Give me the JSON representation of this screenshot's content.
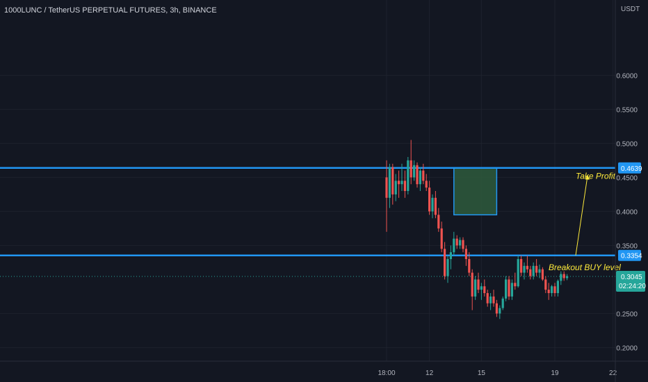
{
  "header": {
    "title": "1000LUNC / TetherUS PERPETUAL FUTURES, 3h, BINANCE",
    "currency": "USDT"
  },
  "colors": {
    "background": "#131722",
    "grid": "#1e222d",
    "up": "#26a69a",
    "down": "#ef5350",
    "level_line": "#2196f3",
    "annotation": "#ffeb3b",
    "target_box": "#2e5a3c"
  },
  "chart_data": {
    "type": "candlestick",
    "symbol": "1000LUNC / TetherUS PERPETUAL FUTURES",
    "interval": "3h",
    "exchange": "BINANCE",
    "y_range": [
      0.18,
      0.68
    ],
    "y_ticks": [
      {
        "value": 0.6,
        "label": "0.6000"
      },
      {
        "value": 0.55,
        "label": "0.5500"
      },
      {
        "value": 0.5,
        "label": "0.5000"
      },
      {
        "value": 0.45,
        "label": "0.4500"
      },
      {
        "value": 0.4,
        "label": "0.4000"
      },
      {
        "value": 0.35,
        "label": "0.3500"
      },
      {
        "value": 0.25,
        "label": "0.2500"
      },
      {
        "value": 0.2,
        "label": "0.2000"
      }
    ],
    "x_ticks": [
      {
        "bar": 0,
        "label": "18:00"
      },
      {
        "bar": 14,
        "label": "12"
      },
      {
        "bar": 31,
        "label": "15"
      },
      {
        "bar": 55,
        "label": "19"
      },
      {
        "bar": 74,
        "label": "22"
      }
    ],
    "horizontal_levels": [
      {
        "value": 0.4639,
        "label": "0.4639"
      },
      {
        "value": 0.3354,
        "label": "0.3354"
      }
    ],
    "last_price": {
      "value": 0.3045,
      "label": "0.3045",
      "countdown": "02:24:20"
    },
    "annotations": [
      {
        "text": "Take Profit",
        "value": 0.452
      },
      {
        "text": "Breakout BUY level",
        "value": 0.318
      }
    ],
    "target_box": {
      "bar_start": 22,
      "bar_end": 36,
      "top": 0.4639,
      "bottom": 0.395
    },
    "candles": [
      [
        0.45,
        0.475,
        0.37,
        0.42
      ],
      [
        0.42,
        0.47,
        0.405,
        0.465
      ],
      [
        0.465,
        0.47,
        0.41,
        0.425
      ],
      [
        0.425,
        0.455,
        0.415,
        0.445
      ],
      [
        0.445,
        0.46,
        0.42,
        0.44
      ],
      [
        0.44,
        0.47,
        0.43,
        0.445
      ],
      [
        0.445,
        0.46,
        0.42,
        0.43
      ],
      [
        0.43,
        0.48,
        0.425,
        0.475
      ],
      [
        0.475,
        0.505,
        0.44,
        0.45
      ],
      [
        0.45,
        0.475,
        0.445,
        0.468
      ],
      [
        0.468,
        0.472,
        0.435,
        0.44
      ],
      [
        0.44,
        0.465,
        0.43,
        0.46
      ],
      [
        0.46,
        0.47,
        0.44,
        0.445
      ],
      [
        0.445,
        0.455,
        0.43,
        0.435
      ],
      [
        0.435,
        0.445,
        0.395,
        0.4
      ],
      [
        0.4,
        0.425,
        0.39,
        0.42
      ],
      [
        0.42,
        0.43,
        0.39,
        0.395
      ],
      [
        0.395,
        0.405,
        0.37,
        0.375
      ],
      [
        0.375,
        0.385,
        0.34,
        0.345
      ],
      [
        0.345,
        0.355,
        0.3,
        0.305
      ],
      [
        0.305,
        0.335,
        0.295,
        0.33
      ],
      [
        0.33,
        0.35,
        0.315,
        0.34
      ],
      [
        0.34,
        0.37,
        0.335,
        0.36
      ],
      [
        0.36,
        0.365,
        0.345,
        0.35
      ],
      [
        0.35,
        0.362,
        0.345,
        0.358
      ],
      [
        0.358,
        0.362,
        0.34,
        0.345
      ],
      [
        0.345,
        0.35,
        0.32,
        0.33
      ],
      [
        0.33,
        0.34,
        0.305,
        0.31
      ],
      [
        0.31,
        0.315,
        0.255,
        0.275
      ],
      [
        0.275,
        0.305,
        0.27,
        0.3
      ],
      [
        0.3,
        0.31,
        0.28,
        0.285
      ],
      [
        0.285,
        0.295,
        0.27,
        0.29
      ],
      [
        0.29,
        0.3,
        0.275,
        0.28
      ],
      [
        0.28,
        0.285,
        0.26,
        0.265
      ],
      [
        0.265,
        0.28,
        0.255,
        0.275
      ],
      [
        0.275,
        0.285,
        0.26,
        0.265
      ],
      [
        0.265,
        0.27,
        0.245,
        0.25
      ],
      [
        0.25,
        0.262,
        0.242,
        0.258
      ],
      [
        0.258,
        0.275,
        0.255,
        0.272
      ],
      [
        0.272,
        0.305,
        0.268,
        0.3
      ],
      [
        0.3,
        0.305,
        0.27,
        0.275
      ],
      [
        0.275,
        0.3,
        0.27,
        0.295
      ],
      [
        0.295,
        0.31,
        0.285,
        0.29
      ],
      [
        0.29,
        0.335,
        0.288,
        0.33
      ],
      [
        0.33,
        0.335,
        0.305,
        0.31
      ],
      [
        0.31,
        0.325,
        0.3,
        0.32
      ],
      [
        0.32,
        0.335,
        0.31,
        0.315
      ],
      [
        0.315,
        0.32,
        0.3,
        0.305
      ],
      [
        0.305,
        0.325,
        0.3,
        0.32
      ],
      [
        0.32,
        0.33,
        0.305,
        0.31
      ],
      [
        0.31,
        0.322,
        0.302,
        0.315
      ],
      [
        0.315,
        0.318,
        0.298,
        0.3
      ],
      [
        0.3,
        0.305,
        0.28,
        0.285
      ],
      [
        0.285,
        0.295,
        0.27,
        0.28
      ],
      [
        0.28,
        0.292,
        0.275,
        0.29
      ],
      [
        0.29,
        0.295,
        0.275,
        0.28
      ],
      [
        0.28,
        0.3,
        0.275,
        0.298
      ],
      [
        0.298,
        0.312,
        0.292,
        0.308
      ],
      [
        0.308,
        0.312,
        0.298,
        0.302
      ],
      [
        0.302,
        0.308,
        0.299,
        0.305
      ]
    ]
  }
}
